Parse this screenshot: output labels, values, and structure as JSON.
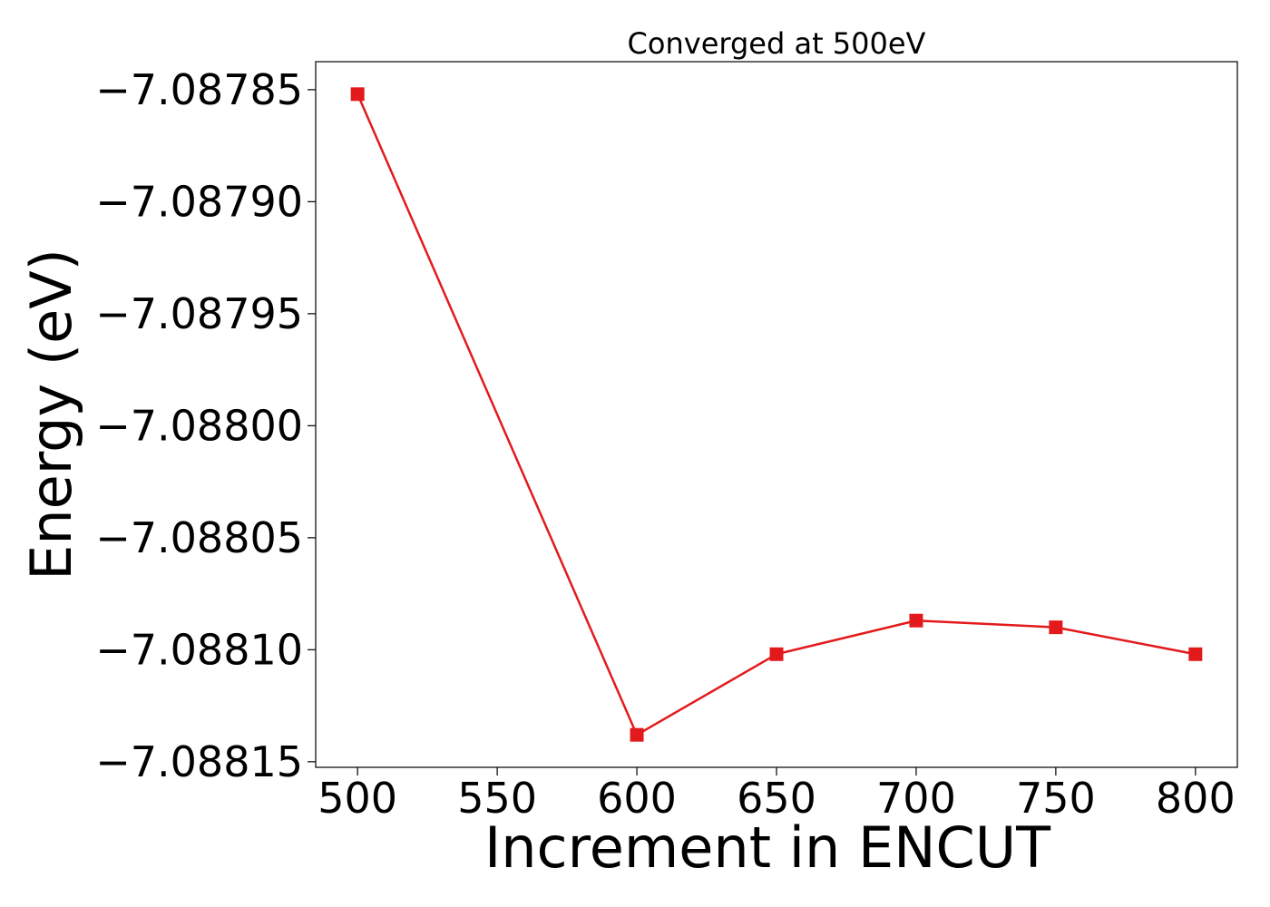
{
  "chart_data": {
    "type": "line",
    "title": "Converged at 500eV",
    "xlabel": "Increment in ENCUT",
    "ylabel": "Energy (eV)",
    "x": [
      500,
      600,
      650,
      700,
      750,
      800
    ],
    "series": [
      {
        "values": [
          -7.087852,
          -7.088138,
          -7.088102,
          -7.088087,
          -7.08809,
          -7.088102
        ],
        "color": "#e31a1c",
        "marker": "square"
      }
    ],
    "xlim": [
      485,
      815
    ],
    "ylim": [
      -7.0881525,
      -7.0878375
    ],
    "xticks": [
      500,
      550,
      600,
      650,
      700,
      750,
      800
    ],
    "xtick_labels": [
      "500",
      "550",
      "600",
      "650",
      "700",
      "750",
      "800"
    ],
    "yticks": [
      -7.08785,
      -7.0879,
      -7.08795,
      -7.088,
      -7.08805,
      -7.0881,
      -7.08815
    ],
    "ytick_labels": [
      "−7.08785",
      "−7.08790",
      "−7.08795",
      "−7.08800",
      "−7.08805",
      "−7.08810",
      "−7.08815"
    ],
    "grid": false,
    "legend": "none"
  }
}
